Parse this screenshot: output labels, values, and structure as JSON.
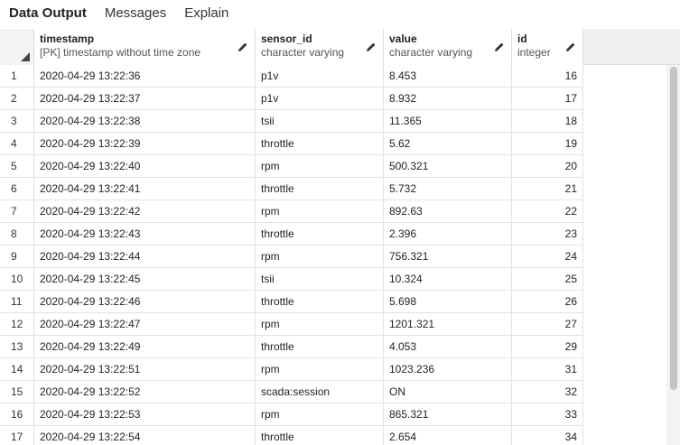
{
  "tabs": [
    {
      "label": "Data Output",
      "active": true
    },
    {
      "label": "Messages",
      "active": false
    },
    {
      "label": "Explain",
      "active": false
    }
  ],
  "columns": [
    {
      "name": "timestamp",
      "type": "[PK] timestamp without time zone"
    },
    {
      "name": "sensor_id",
      "type": "character varying"
    },
    {
      "name": "value",
      "type": "character varying"
    },
    {
      "name": "id",
      "type": "integer"
    }
  ],
  "rows": [
    {
      "n": "1",
      "timestamp": "2020-04-29 13:22:36",
      "sensor_id": "p1v",
      "value": "8.453",
      "id": "16"
    },
    {
      "n": "2",
      "timestamp": "2020-04-29 13:22:37",
      "sensor_id": "p1v",
      "value": "8.932",
      "id": "17"
    },
    {
      "n": "3",
      "timestamp": "2020-04-29 13:22:38",
      "sensor_id": "tsii",
      "value": "11.365",
      "id": "18"
    },
    {
      "n": "4",
      "timestamp": "2020-04-29 13:22:39",
      "sensor_id": "throttle",
      "value": "5.62",
      "id": "19"
    },
    {
      "n": "5",
      "timestamp": "2020-04-29 13:22:40",
      "sensor_id": "rpm",
      "value": "500.321",
      "id": "20"
    },
    {
      "n": "6",
      "timestamp": "2020-04-29 13:22:41",
      "sensor_id": "throttle",
      "value": "5.732",
      "id": "21"
    },
    {
      "n": "7",
      "timestamp": "2020-04-29 13:22:42",
      "sensor_id": "rpm",
      "value": "892.63",
      "id": "22"
    },
    {
      "n": "8",
      "timestamp": "2020-04-29 13:22:43",
      "sensor_id": "throttle",
      "value": "2.396",
      "id": "23"
    },
    {
      "n": "9",
      "timestamp": "2020-04-29 13:22:44",
      "sensor_id": "rpm",
      "value": "756.321",
      "id": "24"
    },
    {
      "n": "10",
      "timestamp": "2020-04-29 13:22:45",
      "sensor_id": "tsii",
      "value": "10.324",
      "id": "25"
    },
    {
      "n": "11",
      "timestamp": "2020-04-29 13:22:46",
      "sensor_id": "throttle",
      "value": "5.698",
      "id": "26"
    },
    {
      "n": "12",
      "timestamp": "2020-04-29 13:22:47",
      "sensor_id": "rpm",
      "value": "1201.321",
      "id": "27"
    },
    {
      "n": "13",
      "timestamp": "2020-04-29 13:22:49",
      "sensor_id": "throttle",
      "value": "4.053",
      "id": "29"
    },
    {
      "n": "14",
      "timestamp": "2020-04-29 13:22:51",
      "sensor_id": "rpm",
      "value": "1023.236",
      "id": "31"
    },
    {
      "n": "15",
      "timestamp": "2020-04-29 13:22:52",
      "sensor_id": "scada:session",
      "value": "ON",
      "id": "32"
    },
    {
      "n": "16",
      "timestamp": "2020-04-29 13:22:53",
      "sensor_id": "rpm",
      "value": "865.321",
      "id": "33"
    },
    {
      "n": "17",
      "timestamp": "2020-04-29 13:22:54",
      "sensor_id": "throttle",
      "value": "2.654",
      "id": "34"
    }
  ],
  "icons": {
    "edit_column": "pencil-icon",
    "select_all": "select-all-triangle-icon"
  }
}
